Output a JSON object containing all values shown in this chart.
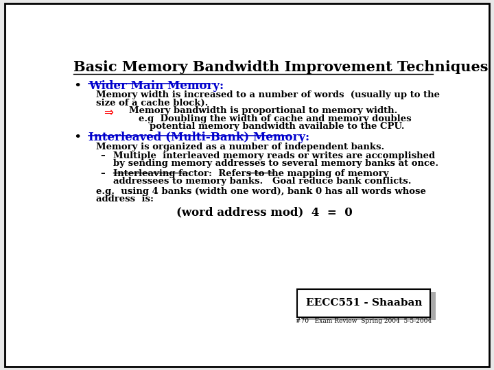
{
  "title": "Basic Memory Bandwidth Improvement Techniques",
  "bg_color": "#e8e8e8",
  "slide_bg": "#ffffff",
  "title_color": "#000000",
  "bullet1_text": "Wider Main Memory:",
  "bullet1_color": "#0000cc",
  "body1_line1": "Memory width is increased to a number of words  (usually up to the",
  "body1_line2": "size of a cache block).",
  "arrow_text": "Memory bandwidth is proportional to memory width.",
  "eg1_line1": "e.g  Doubling the width of cache and memory doubles",
  "eg1_line2": "potential memory bandwidth available to the CPU.",
  "bullet2_text": "Interleaved (Multi-Bank) Memory:",
  "bullet2_color": "#0000cc",
  "body2_line1": "Memory is organized as a number of independent banks.",
  "dash1_line1": "Multiple  interleaved memory reads or writes are accomplished",
  "dash1_line2": "by sending memory addresses to several memory banks at once.",
  "dash2_line1": "Interleaving factor:  Refers to the mapping of memory",
  "dash2_line2": "addressees to memory banks.   Goal reduce bank conflicts.",
  "eg2_line1": "e.g.  using 4 banks (width one word), bank 0 has all words whose",
  "eg2_line2": "address  is:",
  "formula": "(word address mod)  4  =  0",
  "footer_box": "EECC551 - Shaaban",
  "footer_sub": "#70   Exam Review  Spring 2004  5-5-2004",
  "font_family": "DejaVu Serif"
}
